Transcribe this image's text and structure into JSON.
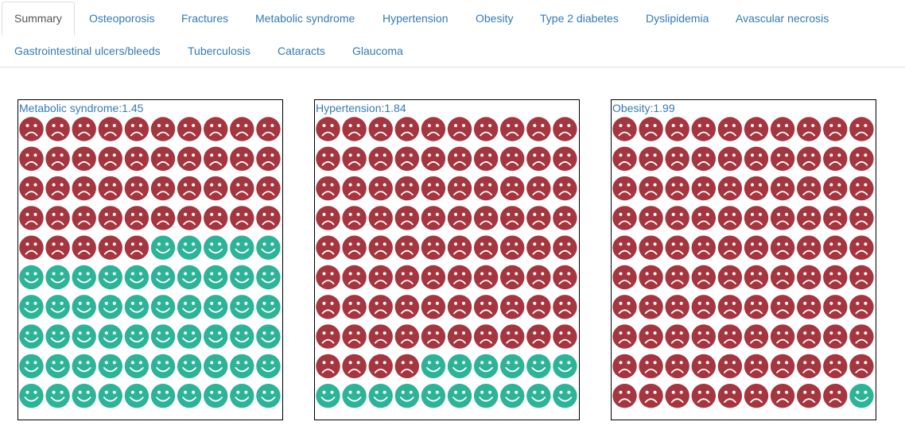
{
  "tabs": [
    {
      "label": "Summary",
      "active": true
    },
    {
      "label": "Osteoporosis"
    },
    {
      "label": "Fractures"
    },
    {
      "label": "Metabolic syndrome"
    },
    {
      "label": "Hypertension"
    },
    {
      "label": "Obesity"
    },
    {
      "label": "Type 2 diabetes"
    },
    {
      "label": "Dyslipidemia"
    },
    {
      "label": "Avascular necrosis"
    },
    {
      "label": "Gastrointestinal ulcers/bleeds"
    },
    {
      "label": "Tuberculosis"
    },
    {
      "label": "Cataracts"
    },
    {
      "label": "Glaucoma"
    }
  ],
  "panels": [
    {
      "title": "Metabolic syndrome:1.45",
      "sad_count": 45,
      "total": 100
    },
    {
      "title": "Hypertension:1.84",
      "sad_count": 84,
      "total": 100
    },
    {
      "title": "Obesity:1.99",
      "sad_count": 99,
      "total": 100
    }
  ],
  "colors": {
    "sad": "#a5353f",
    "happy": "#2db397",
    "link": "#337ab7"
  },
  "icons": {
    "sad": "sad-face-icon",
    "happy": "happy-face-icon"
  }
}
